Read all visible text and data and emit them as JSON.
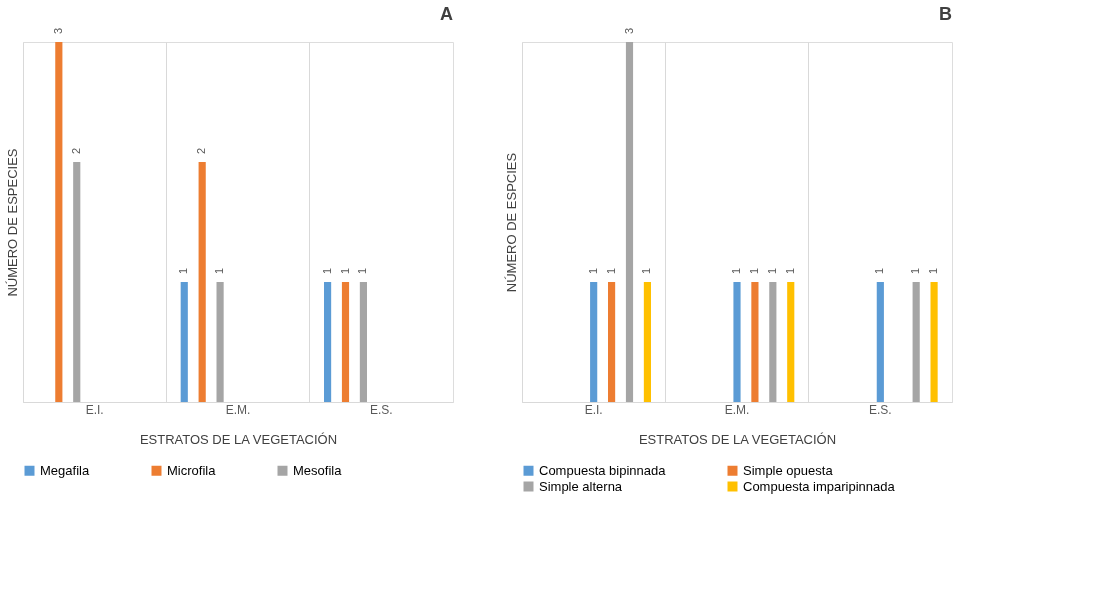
{
  "chart_data": [
    {
      "type": "bar",
      "title": "A",
      "xlabel": "ESTRATOS DE LA VEGETACIÓN",
      "ylabel": "NÚMERO DE ESPECIES",
      "categories": [
        "E.I.",
        "E.M.",
        "E.S."
      ],
      "series": [
        {
          "name": "Megafila",
          "color": "#5b9bd5",
          "values": [
            null,
            1,
            1
          ]
        },
        {
          "name": "Microfila",
          "color": "#ed7d31",
          "values": [
            3,
            2,
            1
          ]
        },
        {
          "name": "Mesofila",
          "color": "#a5a5a5",
          "values": [
            2,
            1,
            1
          ]
        }
      ],
      "data_labels": true,
      "legend": "bottom",
      "grid": "x",
      "tick_labels": "x"
    },
    {
      "type": "bar",
      "title": "B",
      "xlabel": "ESTRATOS DE LA VEGETACIÓN",
      "ylabel": "NÚMERO DE ESPCIES",
      "categories": [
        "E.I.",
        "E.M.",
        "E.S."
      ],
      "series": [
        {
          "name": "Compuesta bipinnada",
          "color": "#5b9bd5",
          "values": [
            1,
            1,
            1
          ]
        },
        {
          "name": "Simple opuesta",
          "color": "#ed7d31",
          "values": [
            1,
            1,
            null
          ]
        },
        {
          "name": "Simple alterna",
          "color": "#a5a5a5",
          "values": [
            3,
            1,
            1
          ]
        },
        {
          "name": "Compuesta imparipinnada",
          "color": "#ffc000",
          "values": [
            1,
            1,
            1
          ]
        }
      ],
      "data_labels": true,
      "legend": "bottom",
      "grid": "x",
      "tick_labels": "x"
    }
  ]
}
